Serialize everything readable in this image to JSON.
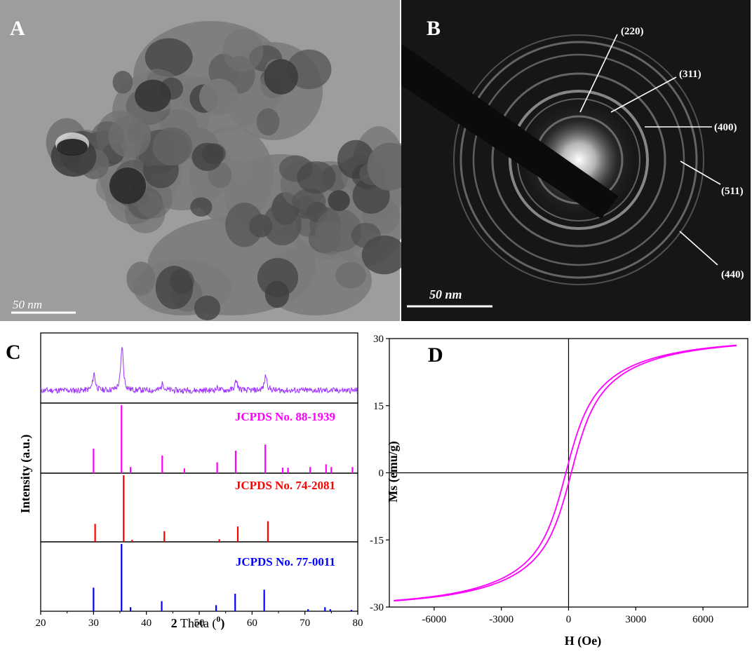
{
  "colors": {
    "xrd_measured": "#9b30ff",
    "ref1": "#ff00ff",
    "ref2": "#ff0000",
    "ref3": "#0000ff",
    "hysteresis": "#ff00ff",
    "tem_background": "#9a9a9a",
    "saed_background": "#161616"
  },
  "panel_a": {
    "label": "A",
    "image": "TEM micrograph of aggregated nanoparticles",
    "scale_bar": "50 nm"
  },
  "panel_b": {
    "label": "B",
    "image": "SAED ring pattern with beam stopper",
    "scale_bar": "50 nm",
    "ring_labels": [
      "(220)",
      "(311)",
      "(400)",
      "(511)",
      "(440)"
    ]
  },
  "panel_c": {
    "label": "C",
    "ylabel": "Intensity (a.u.)",
    "xlabel_main": "2",
    "xlabel_theta": " Theta (",
    "xlabel_sup": "0",
    "xlabel_close": ")",
    "references": [
      "JCPDS No. 88-1939",
      "JCPDS No. 74-2081",
      "JCPDS No. 77-0011"
    ]
  },
  "panel_d": {
    "label": "D",
    "ylabel": "Ms (emu/g)",
    "xlabel": "H (Oe)"
  },
  "chart_data": [
    {
      "type": "line",
      "panel": "C",
      "xlabel": "2 Theta (0)",
      "ylabel": "Intensity (a.u.)",
      "xlim": [
        20,
        80
      ],
      "xticks": [
        20,
        30,
        40,
        50,
        60,
        70,
        80
      ],
      "series": [
        {
          "peaks_2theta": [
            30.1,
            35.4,
            43.1,
            53.5,
            57.0,
            62.6
          ],
          "peaks_rel_intensity": [
            0.38,
            1.0,
            0.16,
            0.06,
            0.22,
            0.34
          ]
        }
      ]
    },
    {
      "type": "bar",
      "panel": "C",
      "name": "JCPDS No. 88-1939",
      "x": [
        30.0,
        35.3,
        37.0,
        43.0,
        47.2,
        53.4,
        56.9,
        62.5,
        65.8,
        66.8,
        71.0,
        74.0,
        75.0,
        79.0
      ],
      "values": [
        36,
        100,
        9,
        26,
        7,
        16,
        33,
        42,
        8,
        8,
        9,
        13,
        9,
        9
      ]
    },
    {
      "type": "bar",
      "panel": "C",
      "name": "JCPDS No. 74-2081",
      "x": [
        30.3,
        35.7,
        37.3,
        43.4,
        53.8,
        57.3,
        63.0
      ],
      "values": [
        27,
        100,
        3,
        16,
        4,
        23,
        31
      ]
    },
    {
      "type": "bar",
      "panel": "C",
      "name": "JCPDS No. 77-0011",
      "x": [
        30.0,
        35.3,
        37.0,
        42.9,
        53.2,
        56.8,
        62.3,
        70.6,
        73.8,
        74.8,
        78.8
      ],
      "values": [
        35,
        100,
        6,
        15,
        9,
        26,
        32,
        3,
        6,
        3,
        2
      ]
    },
    {
      "type": "line",
      "panel": "D",
      "xlabel": "H (Oe)",
      "ylabel": "Ms (emu/g)",
      "xlim": [
        -8000,
        8000
      ],
      "ylim": [
        -30,
        30
      ],
      "xticks": [
        -6000,
        -3000,
        0,
        3000,
        6000
      ],
      "yticks": [
        -30,
        -15,
        0,
        15,
        30
      ],
      "series": [
        {
          "saturation_magnetization": 31,
          "coercivity": 120,
          "field_max": 7500,
          "magnetization_at_max": 29.2
        }
      ]
    }
  ]
}
